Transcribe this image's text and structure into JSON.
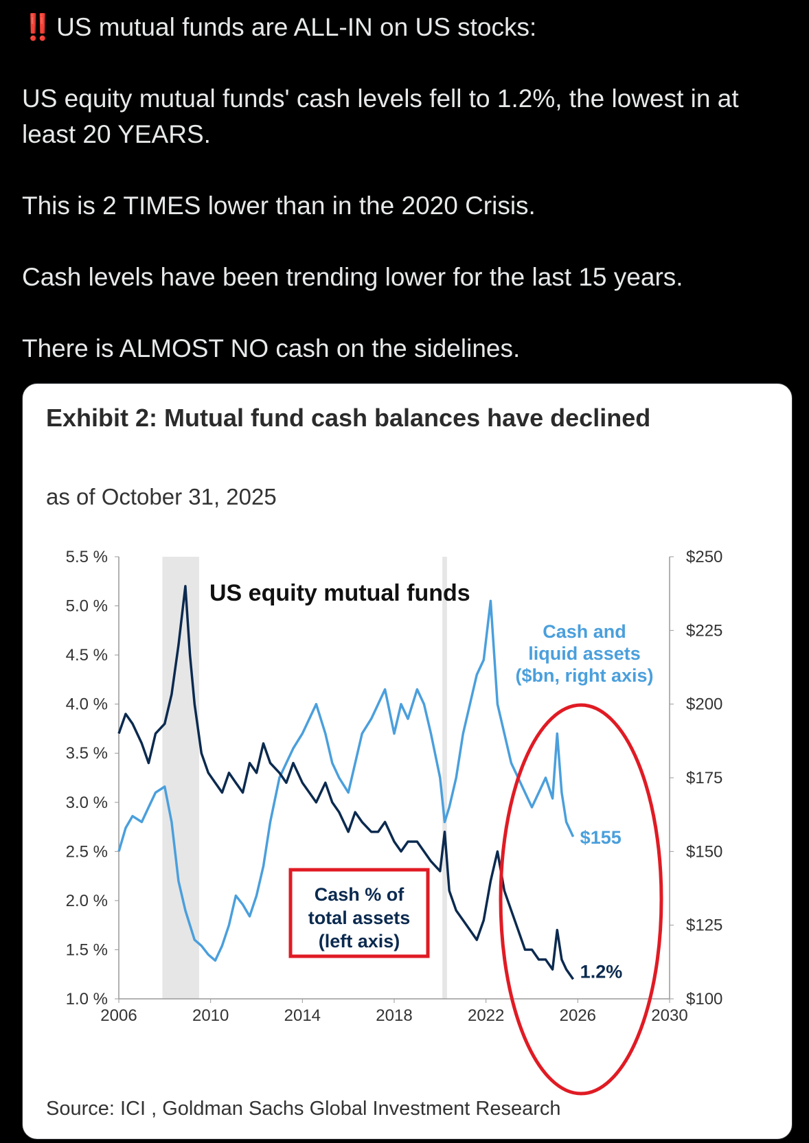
{
  "tweet": {
    "alert_icon": "‼️",
    "headline": "US mutual funds are ALL-IN on US stocks:",
    "paragraphs": [
      "US equity mutual funds' cash levels fell to 1.2%, the lowest in at least 20 YEARS.",
      "This is 2 TIMES lower than in the 2020 Crisis.",
      "Cash levels have been trending lower for the last 15 years.",
      "There is ALMOST NO cash on the sidelines."
    ]
  },
  "colors": {
    "background": "#000000",
    "text": "#e7e9ea",
    "alert": "#f4212e",
    "dark_series": "#0b2a4f",
    "light_series": "#4a9fdc",
    "recession_band": "#e6e6e6",
    "highlight_red": "#e01b24"
  },
  "chart_data": {
    "type": "line",
    "title": "Exhibit 2: Mutual fund cash balances have declined",
    "subtitle": "as of October 31, 2025",
    "inner_title": "US equity mutual funds",
    "source": "Source: ICI , Goldman Sachs Global Investment Research",
    "x_ticks": [
      "2006",
      "2010",
      "2014",
      "2018",
      "2022",
      "2026",
      "2030"
    ],
    "xlim": [
      2006,
      2030
    ],
    "y_left_ticks": [
      "5.5 %",
      "5.0 %",
      "4.5 %",
      "4.0 %",
      "3.5 %",
      "3.0 %",
      "2.5 %",
      "2.0 %",
      "1.5 %",
      "1.0 %"
    ],
    "ylim_left": [
      1.0,
      5.5
    ],
    "y_right_ticks": [
      "$250",
      "$225",
      "$200",
      "$175",
      "$150",
      "$125",
      "$100"
    ],
    "ylim_right": [
      100,
      250
    ],
    "shaded_periods": [
      [
        2007.9,
        2009.5
      ],
      [
        2020.1,
        2020.3
      ]
    ],
    "series": [
      {
        "name": "Cash % of total assets (left axis)",
        "label_lines": [
          "Cash % of",
          "total assets",
          "(left axis)"
        ],
        "end_label": "1.2%",
        "axis": "left",
        "x": [
          2006.0,
          2006.3,
          2006.6,
          2007.0,
          2007.3,
          2007.6,
          2008.0,
          2008.3,
          2008.6,
          2008.9,
          2009.1,
          2009.3,
          2009.6,
          2009.9,
          2010.2,
          2010.5,
          2010.8,
          2011.1,
          2011.4,
          2011.7,
          2012.0,
          2012.3,
          2012.6,
          2013.0,
          2013.3,
          2013.6,
          2014.0,
          2014.3,
          2014.6,
          2015.0,
          2015.3,
          2015.6,
          2016.0,
          2016.3,
          2016.6,
          2017.0,
          2017.3,
          2017.6,
          2018.0,
          2018.3,
          2018.6,
          2019.0,
          2019.3,
          2019.6,
          2020.0,
          2020.2,
          2020.4,
          2020.7,
          2021.0,
          2021.3,
          2021.6,
          2021.9,
          2022.2,
          2022.5,
          2022.8,
          2023.1,
          2023.4,
          2023.7,
          2024.0,
          2024.3,
          2024.6,
          2024.9,
          2025.1,
          2025.3,
          2025.5,
          2025.8
        ],
        "values": [
          3.7,
          3.9,
          3.8,
          3.6,
          3.4,
          3.7,
          3.8,
          4.1,
          4.6,
          5.2,
          4.5,
          4.0,
          3.5,
          3.3,
          3.2,
          3.1,
          3.3,
          3.2,
          3.1,
          3.4,
          3.3,
          3.6,
          3.4,
          3.3,
          3.2,
          3.4,
          3.2,
          3.1,
          3.0,
          3.2,
          3.0,
          2.9,
          2.7,
          2.9,
          2.8,
          2.7,
          2.7,
          2.8,
          2.6,
          2.5,
          2.6,
          2.6,
          2.5,
          2.4,
          2.3,
          2.7,
          2.1,
          1.9,
          1.8,
          1.7,
          1.6,
          1.8,
          2.2,
          2.5,
          2.1,
          1.9,
          1.7,
          1.5,
          1.5,
          1.4,
          1.4,
          1.3,
          1.7,
          1.4,
          1.3,
          1.2
        ]
      },
      {
        "name": "Cash and liquid assets ($bn, right axis)",
        "label_lines": [
          "Cash and",
          "liquid assets",
          "($bn, right axis)"
        ],
        "end_label": "$155",
        "axis": "right",
        "x": [
          2006.0,
          2006.3,
          2006.6,
          2007.0,
          2007.3,
          2007.6,
          2008.0,
          2008.3,
          2008.6,
          2008.9,
          2009.1,
          2009.3,
          2009.6,
          2009.9,
          2010.2,
          2010.5,
          2010.8,
          2011.1,
          2011.4,
          2011.7,
          2012.0,
          2012.3,
          2012.6,
          2013.0,
          2013.3,
          2013.6,
          2014.0,
          2014.3,
          2014.6,
          2015.0,
          2015.3,
          2015.6,
          2016.0,
          2016.3,
          2016.6,
          2017.0,
          2017.3,
          2017.6,
          2018.0,
          2018.3,
          2018.6,
          2019.0,
          2019.3,
          2019.6,
          2020.0,
          2020.2,
          2020.4,
          2020.7,
          2021.0,
          2021.3,
          2021.6,
          2021.9,
          2022.2,
          2022.5,
          2022.8,
          2023.1,
          2023.4,
          2023.7,
          2024.0,
          2024.3,
          2024.6,
          2024.9,
          2025.1,
          2025.3,
          2025.5,
          2025.8
        ],
        "values": [
          150,
          158,
          162,
          160,
          165,
          170,
          172,
          160,
          140,
          130,
          125,
          120,
          118,
          115,
          113,
          118,
          125,
          135,
          132,
          128,
          135,
          145,
          160,
          175,
          180,
          185,
          190,
          195,
          200,
          190,
          180,
          175,
          170,
          180,
          190,
          195,
          200,
          205,
          190,
          200,
          195,
          205,
          200,
          190,
          175,
          160,
          165,
          175,
          190,
          200,
          210,
          215,
          235,
          200,
          190,
          180,
          175,
          170,
          165,
          170,
          175,
          168,
          190,
          170,
          160,
          155
        ]
      }
    ]
  }
}
